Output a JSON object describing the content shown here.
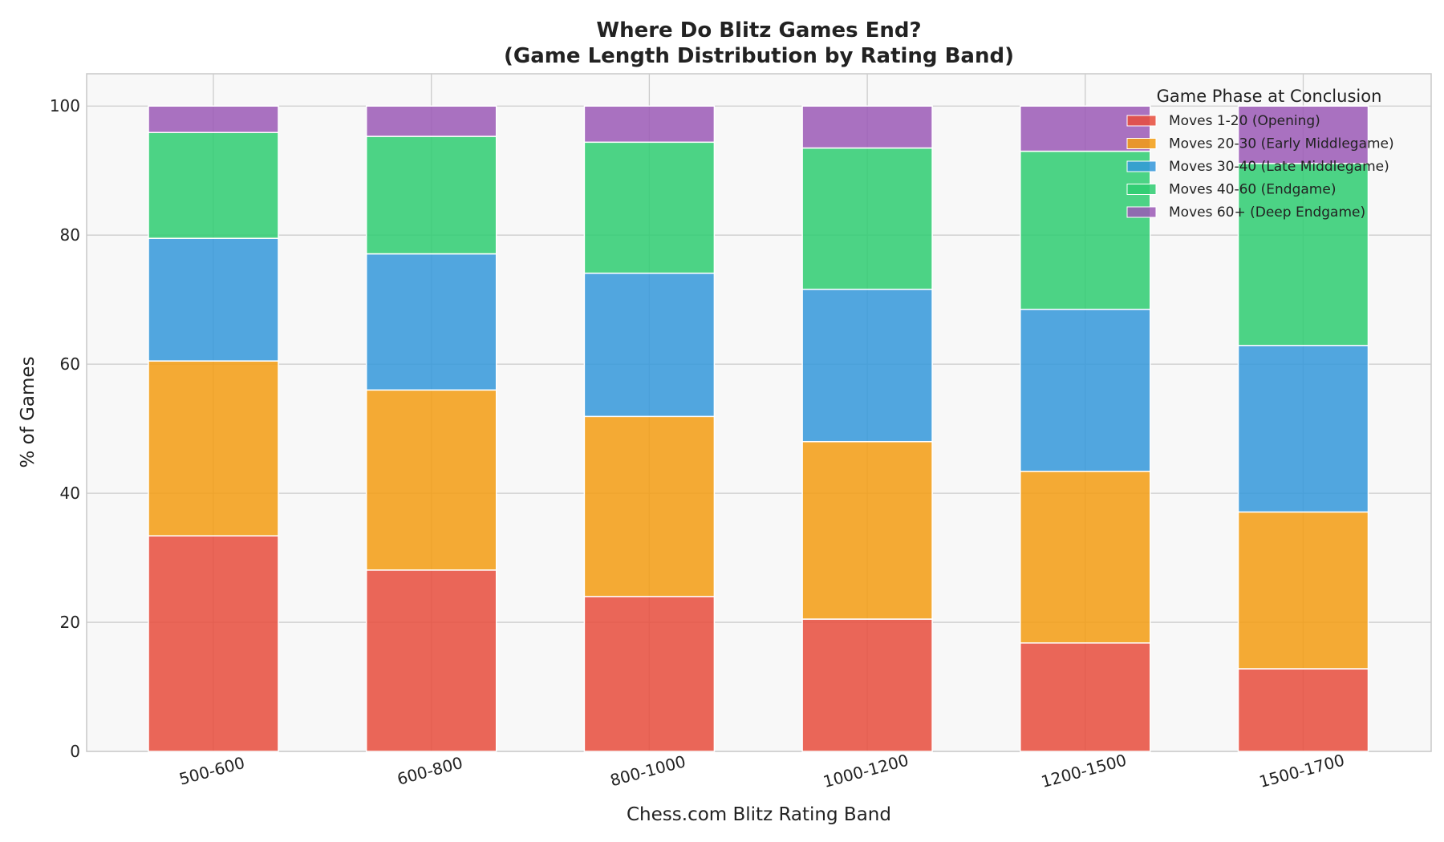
{
  "chart_data": {
    "type": "bar",
    "stacked": true,
    "title_line1": "Where Do Blitz Games End?",
    "title_line2": "(Game Length Distribution by Rating Band)",
    "xlabel": "Chess.com Blitz Rating Band",
    "ylabel": "% of Games",
    "ylim": [
      0,
      105
    ],
    "yticks": [
      0,
      20,
      40,
      60,
      80,
      100
    ],
    "grid": true,
    "legend_title": "Game Phase at Conclusion",
    "legend_position": "top-right",
    "categories": [
      "500-600",
      "600-800",
      "800-1000",
      "1000-1200",
      "1200-1500",
      "1500-1700"
    ],
    "series": [
      {
        "name": "Moves 1-20 (Opening)",
        "color": "#e74c3c",
        "values": [
          33.4,
          28.1,
          24.0,
          20.5,
          16.8,
          12.8
        ]
      },
      {
        "name": "Moves 20-30 (Early Middlegame)",
        "color": "#f39c12",
        "values": [
          27.1,
          27.9,
          27.9,
          27.5,
          26.6,
          24.3
        ]
      },
      {
        "name": "Moves 30-40 (Late Middlegame)",
        "color": "#3498db",
        "values": [
          19.0,
          21.1,
          22.2,
          23.6,
          25.1,
          25.8
        ]
      },
      {
        "name": "Moves 40-60 (Endgame)",
        "color": "#2ecc71",
        "values": [
          16.4,
          18.2,
          20.3,
          21.9,
          24.5,
          28.2
        ]
      },
      {
        "name": "Moves 60+ (Deep Endgame)",
        "color": "#9b59b6",
        "values": [
          4.1,
          4.7,
          5.6,
          6.5,
          7.0,
          8.9
        ]
      }
    ]
  }
}
